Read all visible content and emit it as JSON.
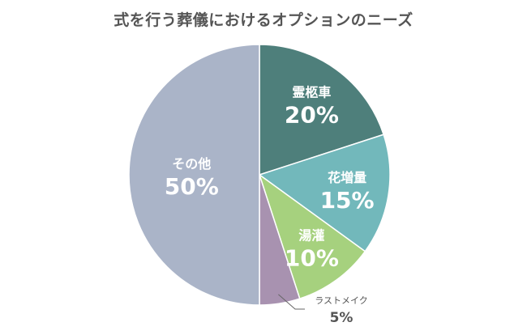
{
  "chart_data": {
    "type": "pie",
    "title": "式を行う葬儀におけるオプションのニーズ",
    "slices": [
      {
        "label": "霊柩車",
        "value": 20,
        "display": "20%",
        "color": "#4e7f7b",
        "label_position": "inside"
      },
      {
        "label": "花増量",
        "value": 15,
        "display": "15%",
        "color": "#72b8bb",
        "label_position": "inside"
      },
      {
        "label": "湯灌",
        "value": 10,
        "display": "10%",
        "color": "#a6d17e",
        "label_position": "inside"
      },
      {
        "label": "ラストメイク",
        "value": 5,
        "display": "5%",
        "color": "#a892b0",
        "label_position": "outside"
      },
      {
        "label": "その他",
        "value": 50,
        "display": "50%",
        "color": "#aab4c8",
        "label_position": "inside"
      }
    ],
    "start_angle": "12 o'clock",
    "direction": "clockwise",
    "legend": "none"
  }
}
